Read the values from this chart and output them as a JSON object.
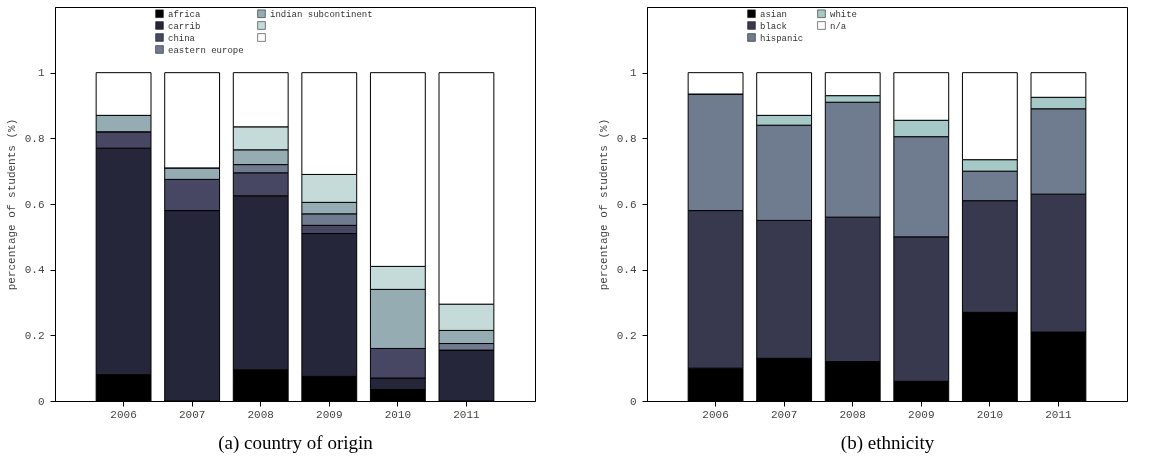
{
  "chart_data": [
    {
      "type": "bar",
      "stacked": true,
      "xlabel": "(a) country of origin",
      "ylabel": "percentage of students (%)",
      "categories": [
        "2006",
        "2007",
        "2008",
        "2009",
        "2010",
        "2011"
      ],
      "ylim": [
        0,
        1.2
      ],
      "yticks": [
        0,
        0.2,
        0.4,
        0.6,
        0.8,
        1
      ],
      "grid": false,
      "legend": "top",
      "series": [
        {
          "name": "africa",
          "color": "#000000",
          "values": [
            0.08,
            0,
            0.095,
            0.075,
            0.035,
            0
          ]
        },
        {
          "name": "carrib",
          "color": "#26263a",
          "values": [
            0.69,
            0.58,
            0.53,
            0.435,
            0.035,
            0.155
          ]
        },
        {
          "name": "china",
          "color": "#484763",
          "values": [
            0.05,
            0.095,
            0.07,
            0.025,
            0.09,
            0
          ]
        },
        {
          "name": "eastern europe",
          "color": "#6f7b8e",
          "values": [
            0,
            0,
            0.025,
            0.035,
            0,
            0.02
          ]
        },
        {
          "name": "indian subcontinent",
          "color": "#95acb3",
          "values": [
            0.05,
            0.035,
            0.045,
            0.035,
            0.18,
            0.04
          ]
        },
        {
          "color": "#c5dbd9",
          "values": [
            0,
            0,
            0.07,
            0.085,
            0.07,
            0.08
          ]
        },
        {
          "color": "#ffffff",
          "values": [
            0.13,
            0.29,
            0.165,
            0.31,
            0.59,
            0.705
          ]
        }
      ]
    },
    {
      "type": "bar",
      "stacked": true,
      "xlabel": "(b) ethnicity",
      "ylabel": "percentage of students (%)",
      "categories": [
        "2006",
        "2007",
        "2008",
        "2009",
        "2010",
        "2011"
      ],
      "ylim": [
        0,
        1.2
      ],
      "yticks": [
        0,
        0.2,
        0.4,
        0.6,
        0.8,
        1
      ],
      "grid": false,
      "legend": "top",
      "series": [
        {
          "name": "asian",
          "color": "#000000",
          "values": [
            0.1,
            0.13,
            0.12,
            0.06,
            0.27,
            0.21
          ]
        },
        {
          "name": "black",
          "color": "#38384f",
          "values": [
            0.48,
            0.42,
            0.44,
            0.44,
            0.34,
            0.42
          ]
        },
        {
          "name": "hispanic",
          "color": "#6f7b8e",
          "values": [
            0.355,
            0.29,
            0.35,
            0.305,
            0.09,
            0.26
          ]
        },
        {
          "name": "white",
          "color": "#a6c8c6",
          "values": [
            0,
            0.03,
            0.02,
            0.05,
            0.035,
            0.035
          ]
        },
        {
          "name": "n/a",
          "color": "#ffffff",
          "values": [
            0.065,
            0.13,
            0.07,
            0.145,
            0.265,
            0.075
          ]
        }
      ]
    }
  ]
}
